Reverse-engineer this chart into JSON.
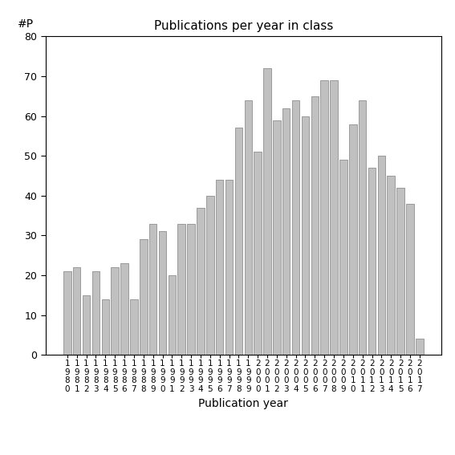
{
  "title": "Publications per year in class",
  "xlabel": "Publication year",
  "ylabel_text": "#P",
  "years": [
    "1980",
    "1981",
    "1982",
    "1983",
    "1984",
    "1985",
    "1986",
    "1987",
    "1988",
    "1989",
    "1990",
    "1991",
    "1992",
    "1993",
    "1994",
    "1995",
    "1996",
    "1997",
    "1998",
    "1999",
    "2000",
    "2001",
    "2002",
    "2003",
    "2004",
    "2005",
    "2006",
    "2007",
    "2008",
    "2009",
    "2010",
    "2011",
    "2012",
    "2013",
    "2014",
    "2015",
    "2016",
    "2017"
  ],
  "values": [
    21,
    22,
    15,
    21,
    14,
    22,
    23,
    14,
    29,
    33,
    31,
    20,
    33,
    33,
    37,
    40,
    44,
    44,
    57,
    64,
    51,
    72,
    59,
    62,
    64,
    60,
    65,
    69,
    69,
    49,
    58,
    64,
    47,
    50,
    45,
    42,
    38,
    4
  ],
  "bar_color": "#c0c0c0",
  "bar_edge_color": "#808080",
  "ylim": [
    0,
    80
  ],
  "yticks": [
    0,
    10,
    20,
    30,
    40,
    50,
    60,
    70,
    80
  ],
  "bg_color": "#ffffff",
  "figsize": [
    5.67,
    5.67
  ],
  "dpi": 100
}
